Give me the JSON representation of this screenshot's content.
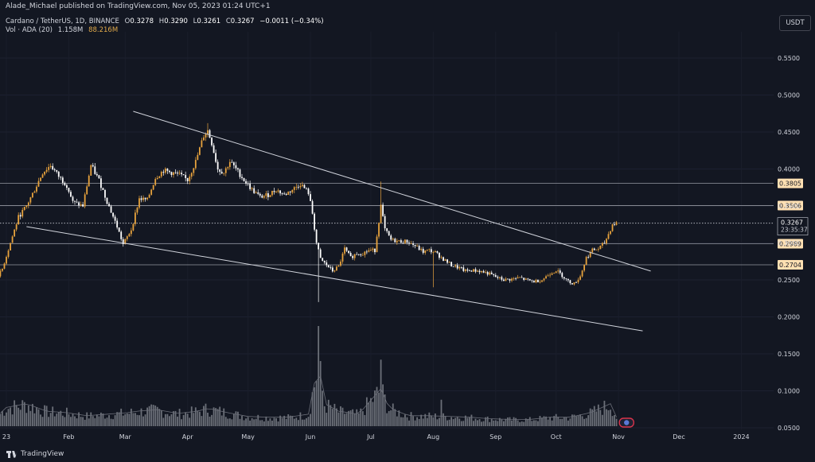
{
  "header": {
    "published": "Alade_Michael published on TradingView.com, Nov 05, 2023 01:24 UTC+1",
    "symbol": "Cardano / TetherUS, 1D, BINANCE",
    "ohlc": [
      {
        "k": "O",
        "v": "0.3278"
      },
      {
        "k": "H",
        "v": "0.3290"
      },
      {
        "k": "L",
        "v": "0.3261"
      },
      {
        "k": "C",
        "v": "0.3267"
      }
    ],
    "change": "−0.0011 (−0.34%)",
    "volume_label": "Vol · ADA (20)",
    "volume_value": "1.158M",
    "volume_ma": "88.216M"
  },
  "currency_button": "USDT",
  "footer": {
    "brand": "TradingView"
  },
  "colors": {
    "background": "#131722",
    "up_candle": "#e8a33d",
    "down_candle": "#ffffff",
    "volume_bar": "#8a8d96",
    "level_line": "#9598a1",
    "trendline": "#d1d4dc",
    "label_bg": "#ffe0b2",
    "axis_text": "#d1d4dc"
  },
  "chart_data": {
    "type": "candlestick",
    "title": "Cardano / TetherUS, 1D, BINANCE",
    "price_axis": {
      "ticks": [
        "0.5500",
        "0.5000",
        "0.4500",
        "0.4000",
        "0.3500",
        "0.3000",
        "0.2500",
        "0.2000",
        "0.1500",
        "0.1000",
        "0.0500"
      ],
      "tick_values": [
        0.55,
        0.5,
        0.45,
        0.4,
        0.35,
        0.3,
        0.25,
        0.2,
        0.15,
        0.1,
        0.05
      ],
      "range": [
        0.05,
        0.55
      ]
    },
    "time_axis": {
      "labels": [
        "23",
        "Feb",
        "Mar",
        "Apr",
        "May",
        "Jun",
        "Jul",
        "Aug",
        "Sep",
        "Oct",
        "Nov",
        "Dec",
        "2024"
      ],
      "label_days": [
        0,
        31,
        59,
        90,
        120,
        151,
        181,
        212,
        243,
        273,
        304,
        334,
        365
      ]
    },
    "horizontal_levels": [
      {
        "value": 0.3805,
        "label": "0.3805"
      },
      {
        "value": 0.3506,
        "label": "0.3506"
      },
      {
        "value": 0.2989,
        "label": "0.2989"
      },
      {
        "value": 0.2704,
        "label": "0.2704"
      }
    ],
    "current_price": {
      "value": 0.3267,
      "label": "0.3267",
      "countdown": "23:35:37"
    },
    "trendlines": [
      {
        "from": {
          "day": 63,
          "price": 0.478
        },
        "to": {
          "day": 320,
          "price": 0.262
        }
      },
      {
        "from": {
          "day": 10,
          "price": 0.322
        },
        "to": {
          "day": 316,
          "price": 0.181
        }
      }
    ],
    "price_keypoints": [
      [
        -6,
        0.245
      ],
      [
        -2,
        0.265
      ],
      [
        2,
        0.3
      ],
      [
        6,
        0.335
      ],
      [
        10,
        0.35
      ],
      [
        14,
        0.372
      ],
      [
        18,
        0.395
      ],
      [
        22,
        0.405
      ],
      [
        26,
        0.39
      ],
      [
        30,
        0.378
      ],
      [
        33,
        0.355
      ],
      [
        38,
        0.35
      ],
      [
        42,
        0.405
      ],
      [
        46,
        0.385
      ],
      [
        50,
        0.356
      ],
      [
        55,
        0.322
      ],
      [
        58,
        0.298
      ],
      [
        62,
        0.318
      ],
      [
        66,
        0.36
      ],
      [
        70,
        0.358
      ],
      [
        74,
        0.388
      ],
      [
        78,
        0.398
      ],
      [
        82,
        0.395
      ],
      [
        86,
        0.392
      ],
      [
        90,
        0.385
      ],
      [
        94,
        0.41
      ],
      [
        98,
        0.445
      ],
      [
        100,
        0.452
      ],
      [
        102,
        0.435
      ],
      [
        105,
        0.4
      ],
      [
        108,
        0.395
      ],
      [
        111,
        0.41
      ],
      [
        114,
        0.4
      ],
      [
        118,
        0.385
      ],
      [
        122,
        0.372
      ],
      [
        126,
        0.362
      ],
      [
        130,
        0.365
      ],
      [
        134,
        0.372
      ],
      [
        138,
        0.365
      ],
      [
        142,
        0.372
      ],
      [
        146,
        0.38
      ],
      [
        150,
        0.368
      ],
      [
        152,
        0.34
      ],
      [
        154,
        0.3
      ],
      [
        156,
        0.278
      ],
      [
        159,
        0.27
      ],
      [
        162,
        0.262
      ],
      [
        165,
        0.268
      ],
      [
        168,
        0.292
      ],
      [
        171,
        0.28
      ],
      [
        174,
        0.286
      ],
      [
        177,
        0.286
      ],
      [
        180,
        0.29
      ],
      [
        183,
        0.29
      ],
      [
        186,
        0.35
      ],
      [
        188,
        0.318
      ],
      [
        191,
        0.304
      ],
      [
        195,
        0.302
      ],
      [
        199,
        0.302
      ],
      [
        203,
        0.296
      ],
      [
        207,
        0.288
      ],
      [
        210,
        0.29
      ],
      [
        213,
        0.287
      ],
      [
        217,
        0.278
      ],
      [
        221,
        0.27
      ],
      [
        225,
        0.266
      ],
      [
        228,
        0.262
      ],
      [
        231,
        0.263
      ],
      [
        235,
        0.262
      ],
      [
        239,
        0.259
      ],
      [
        243,
        0.254
      ],
      [
        247,
        0.25
      ],
      [
        251,
        0.251
      ],
      [
        255,
        0.253
      ],
      [
        258,
        0.25
      ],
      [
        262,
        0.248
      ],
      [
        266,
        0.25
      ],
      [
        270,
        0.259
      ],
      [
        273,
        0.263
      ],
      [
        276,
        0.256
      ],
      [
        279,
        0.248
      ],
      [
        282,
        0.245
      ],
      [
        285,
        0.255
      ],
      [
        288,
        0.28
      ],
      [
        291,
        0.29
      ],
      [
        294,
        0.292
      ],
      [
        297,
        0.3
      ],
      [
        299,
        0.312
      ],
      [
        301,
        0.325
      ],
      [
        303,
        0.3267
      ]
    ],
    "volume_keypoints": [
      [
        -6,
        0.01
      ],
      [
        0,
        0.025
      ],
      [
        10,
        0.03
      ],
      [
        20,
        0.02
      ],
      [
        30,
        0.018
      ],
      [
        40,
        0.014
      ],
      [
        50,
        0.016
      ],
      [
        60,
        0.018
      ],
      [
        65,
        0.02
      ],
      [
        75,
        0.022
      ],
      [
        85,
        0.017
      ],
      [
        95,
        0.02
      ],
      [
        100,
        0.024
      ],
      [
        110,
        0.018
      ],
      [
        120,
        0.013
      ],
      [
        130,
        0.012
      ],
      [
        140,
        0.012
      ],
      [
        150,
        0.016
      ],
      [
        155,
        0.085
      ],
      [
        158,
        0.03
      ],
      [
        165,
        0.02
      ],
      [
        175,
        0.016
      ],
      [
        186,
        0.05
      ],
      [
        190,
        0.024
      ],
      [
        200,
        0.014
      ],
      [
        210,
        0.014
      ],
      [
        220,
        0.013
      ],
      [
        230,
        0.012
      ],
      [
        240,
        0.01
      ],
      [
        250,
        0.009
      ],
      [
        260,
        0.009
      ],
      [
        270,
        0.012
      ],
      [
        280,
        0.012
      ],
      [
        290,
        0.018
      ],
      [
        300,
        0.03
      ],
      [
        303,
        0.012
      ]
    ],
    "volume_spikes": [
      {
        "day": 155,
        "value": 0.14
      },
      {
        "day": 186,
        "value": 0.093
      },
      {
        "day": 216,
        "value": 0.037
      }
    ]
  }
}
